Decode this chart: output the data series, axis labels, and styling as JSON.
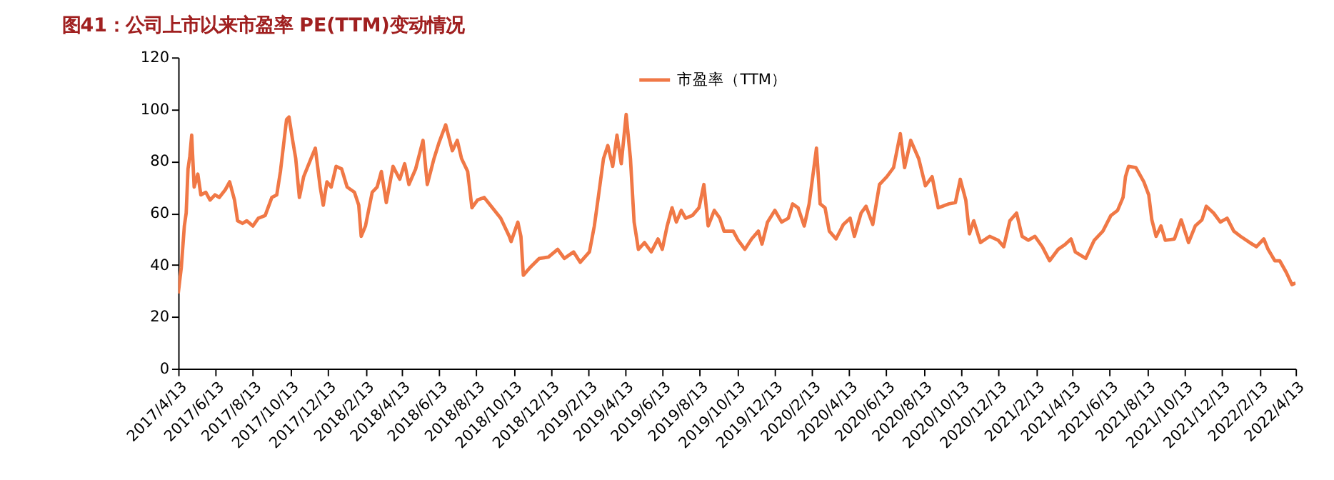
{
  "chart_data": {
    "type": "line",
    "title": "图41：公司上市以来市盈率 PE(TTM)变动情况",
    "x": [
      "2017-04-13",
      "2017-04-18",
      "2017-04-23",
      "2017-04-26",
      "2017-04-29",
      "2017-05-02",
      "2017-05-05",
      "2017-05-09",
      "2017-05-15",
      "2017-05-20",
      "2017-05-28",
      "2017-06-04",
      "2017-06-12",
      "2017-06-19",
      "2017-06-29",
      "2017-07-06",
      "2017-07-14",
      "2017-07-19",
      "2017-07-27",
      "2017-08-03",
      "2017-08-13",
      "2017-08-22",
      "2017-09-02",
      "2017-09-13",
      "2017-09-21",
      "2017-09-27",
      "2017-10-02",
      "2017-10-07",
      "2017-10-11",
      "2017-10-17",
      "2017-10-22",
      "2017-10-28",
      "2017-11-04",
      "2017-11-16",
      "2017-11-23",
      "2017-12-01",
      "2017-12-06",
      "2017-12-12",
      "2017-12-19",
      "2017-12-27",
      "2018-01-05",
      "2018-01-14",
      "2018-01-26",
      "2018-02-02",
      "2018-02-06",
      "2018-02-13",
      "2018-02-24",
      "2018-03-04",
      "2018-03-11",
      "2018-03-19",
      "2018-03-30",
      "2018-04-10",
      "2018-04-18",
      "2018-04-25",
      "2018-05-06",
      "2018-05-18",
      "2018-05-25",
      "2018-06-05",
      "2018-06-13",
      "2018-06-24",
      "2018-07-05",
      "2018-07-13",
      "2018-07-20",
      "2018-07-30",
      "2018-08-06",
      "2018-08-15",
      "2018-08-26",
      "2018-09-22",
      "2018-10-06",
      "2018-10-09",
      "2018-10-20",
      "2018-10-25",
      "2018-10-29",
      "2018-11-09",
      "2018-11-24",
      "2018-12-09",
      "2018-12-24",
      "2019-01-04",
      "2019-01-19",
      "2019-01-30",
      "2019-02-14",
      "2019-02-22",
      "2019-03-01",
      "2019-03-09",
      "2019-03-16",
      "2019-03-24",
      "2019-03-31",
      "2019-04-07",
      "2019-04-15",
      "2019-04-22",
      "2019-04-28",
      "2019-05-05",
      "2019-05-15",
      "2019-05-26",
      "2019-06-06",
      "2019-06-13",
      "2019-06-21",
      "2019-06-29",
      "2019-07-06",
      "2019-07-14",
      "2019-07-21",
      "2019-08-01",
      "2019-08-12",
      "2019-08-20",
      "2019-08-27",
      "2019-09-06",
      "2019-09-15",
      "2019-09-22",
      "2019-10-07",
      "2019-10-15",
      "2019-10-26",
      "2019-11-06",
      "2019-11-17",
      "2019-11-23",
      "2019-12-02",
      "2019-12-14",
      "2019-12-25",
      "2020-01-05",
      "2020-01-12",
      "2020-01-21",
      "2020-01-31",
      "2020-02-08",
      "2020-02-15",
      "2020-02-20",
      "2020-02-26",
      "2020-03-05",
      "2020-03-12",
      "2020-03-23",
      "2020-04-04",
      "2020-04-15",
      "2020-04-22",
      "2020-05-03",
      "2020-05-11",
      "2020-05-22",
      "2020-06-02",
      "2020-06-14",
      "2020-06-25",
      "2020-07-06",
      "2020-07-13",
      "2020-07-23",
      "2020-08-05",
      "2020-08-16",
      "2020-08-27",
      "2020-09-06",
      "2020-09-23",
      "2020-10-04",
      "2020-10-12",
      "2020-10-21",
      "2020-10-27",
      "2020-11-03",
      "2020-11-14",
      "2020-11-29",
      "2020-12-13",
      "2020-12-22",
      "2021-01-01",
      "2021-01-12",
      "2021-01-21",
      "2021-01-31",
      "2021-02-11",
      "2021-02-23",
      "2021-03-07",
      "2021-03-21",
      "2021-04-01",
      "2021-04-11",
      "2021-04-18",
      "2021-05-05",
      "2021-05-19",
      "2021-06-02",
      "2021-06-15",
      "2021-06-26",
      "2021-07-05",
      "2021-07-09",
      "2021-07-14",
      "2021-07-26",
      "2021-08-08",
      "2021-08-16",
      "2021-08-21",
      "2021-08-28",
      "2021-09-05",
      "2021-09-12",
      "2021-09-27",
      "2021-10-08",
      "2021-10-20",
      "2021-10-31",
      "2021-11-11",
      "2021-11-18",
      "2021-11-30",
      "2021-12-11",
      "2021-12-22",
      "2022-01-02",
      "2022-01-13",
      "2022-01-28",
      "2022-02-08",
      "2022-02-20",
      "2022-02-27",
      "2022-03-10",
      "2022-03-18",
      "2022-03-29",
      "2022-04-07",
      "2022-04-13"
    ],
    "series": [
      {
        "name": "市盈率（TTM）",
        "color": "#f07846",
        "values": [
          29,
          39,
          55,
          60,
          77,
          82,
          90,
          70,
          75,
          67,
          68,
          65,
          67,
          66,
          69,
          72,
          65,
          57,
          56,
          57,
          55,
          58,
          59,
          66,
          67,
          76,
          86,
          96,
          97,
          88,
          81,
          66,
          74,
          81,
          85,
          70,
          63,
          72,
          70,
          78,
          77,
          70,
          68,
          63,
          51,
          55,
          68,
          70,
          76,
          64,
          78,
          73,
          79,
          71,
          77,
          88,
          71,
          81,
          87,
          94,
          84,
          88,
          81,
          76,
          62,
          65,
          66,
          58,
          51,
          49,
          56.5,
          51,
          36,
          39,
          42.5,
          43,
          46,
          42.5,
          45,
          41,
          45,
          55,
          67,
          81,
          86,
          78,
          90,
          79,
          98,
          81,
          56.5,
          46,
          48.6,
          45,
          50,
          46,
          55,
          62,
          56.5,
          61,
          58,
          59,
          62,
          71,
          55,
          61,
          58,
          53,
          53,
          49.5,
          46,
          50,
          53,
          48,
          56.5,
          61,
          56.5,
          58,
          63.5,
          62,
          55,
          63.5,
          76,
          85,
          63.5,
          62,
          53,
          50,
          55.6,
          58,
          51,
          60,
          62.6,
          55.6,
          71,
          74,
          77.5,
          90.6,
          77.5,
          88,
          81,
          70.5,
          74,
          62,
          63.5,
          64,
          73,
          65,
          52,
          57,
          48.6,
          51,
          49.5,
          47,
          57,
          60,
          51,
          49.5,
          51,
          47,
          41.6,
          46,
          47.8,
          50,
          45,
          42.5,
          49.5,
          53,
          59,
          61,
          66,
          74,
          78,
          77.5,
          72,
          67,
          57.4,
          51,
          55,
          49.5,
          50,
          57.4,
          48.6,
          55,
          57.4,
          62.6,
          60,
          56.5,
          58,
          53,
          51,
          48.6,
          47,
          50,
          46,
          41.6,
          41.6,
          37,
          32.4,
          33
        ]
      }
    ],
    "ylim": [
      0,
      120
    ],
    "yticks": [
      0,
      20,
      40,
      60,
      80,
      100,
      120
    ],
    "xlim": [
      "2017-04-13",
      "2022-04-13"
    ],
    "xticks": [
      {
        "value": "2017-04-13",
        "label": "2017/4/13"
      },
      {
        "value": "2017-06-13",
        "label": "2017/6/13"
      },
      {
        "value": "2017-08-13",
        "label": "2017/8/13"
      },
      {
        "value": "2017-10-13",
        "label": "2017/10/13"
      },
      {
        "value": "2017-12-13",
        "label": "2017/12/13"
      },
      {
        "value": "2018-02-13",
        "label": "2018/2/13"
      },
      {
        "value": "2018-04-13",
        "label": "2018/4/13"
      },
      {
        "value": "2018-06-13",
        "label": "2018/6/13"
      },
      {
        "value": "2018-08-13",
        "label": "2018/8/13"
      },
      {
        "value": "2018-10-13",
        "label": "2018/10/13"
      },
      {
        "value": "2018-12-13",
        "label": "2018/12/13"
      },
      {
        "value": "2019-02-13",
        "label": "2019/2/13"
      },
      {
        "value": "2019-04-13",
        "label": "2019/4/13"
      },
      {
        "value": "2019-06-13",
        "label": "2019/6/13"
      },
      {
        "value": "2019-08-13",
        "label": "2019/8/13"
      },
      {
        "value": "2019-10-13",
        "label": "2019/10/13"
      },
      {
        "value": "2019-12-13",
        "label": "2019/12/13"
      },
      {
        "value": "2020-02-13",
        "label": "2020/2/13"
      },
      {
        "value": "2020-04-13",
        "label": "2020/4/13"
      },
      {
        "value": "2020-06-13",
        "label": "2020/6/13"
      },
      {
        "value": "2020-08-13",
        "label": "2020/8/13"
      },
      {
        "value": "2020-10-13",
        "label": "2020/10/13"
      },
      {
        "value": "2020-12-13",
        "label": "2020/12/13"
      },
      {
        "value": "2021-02-13",
        "label": "2021/2/13"
      },
      {
        "value": "2021-04-13",
        "label": "2021/4/13"
      },
      {
        "value": "2021-06-13",
        "label": "2021/6/13"
      },
      {
        "value": "2021-08-13",
        "label": "2021/8/13"
      },
      {
        "value": "2021-10-13",
        "label": "2021/10/13"
      },
      {
        "value": "2021-12-13",
        "label": "2021/12/13"
      },
      {
        "value": "2022-02-13",
        "label": "2022/2/13"
      },
      {
        "value": "2022-04-13",
        "label": "2022/4/13"
      }
    ],
    "grid": false,
    "legend": "top"
  }
}
